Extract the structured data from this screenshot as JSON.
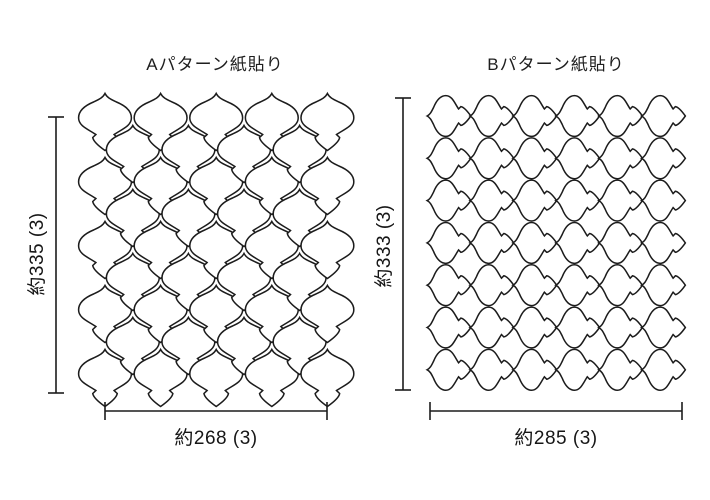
{
  "panels": {
    "a": {
      "title": "Aパターン紙貼り",
      "height_label": "約335 (3)",
      "width_label": "約268 (3)"
    },
    "b": {
      "title": "Bパターン紙貼り",
      "height_label": "約333 (3)",
      "width_label": "約285 (3)"
    }
  },
  "patterns": {
    "a": {
      "type": "staggered-lantern",
      "columns": 9,
      "tiles_per_even_column": 5,
      "tiles_per_odd_column": 4
    },
    "b": {
      "type": "grid-rotated-lantern",
      "columns": 6,
      "rows": 7
    }
  },
  "colors": {
    "line": "#1c1c1c",
    "background": "#ffffff"
  }
}
